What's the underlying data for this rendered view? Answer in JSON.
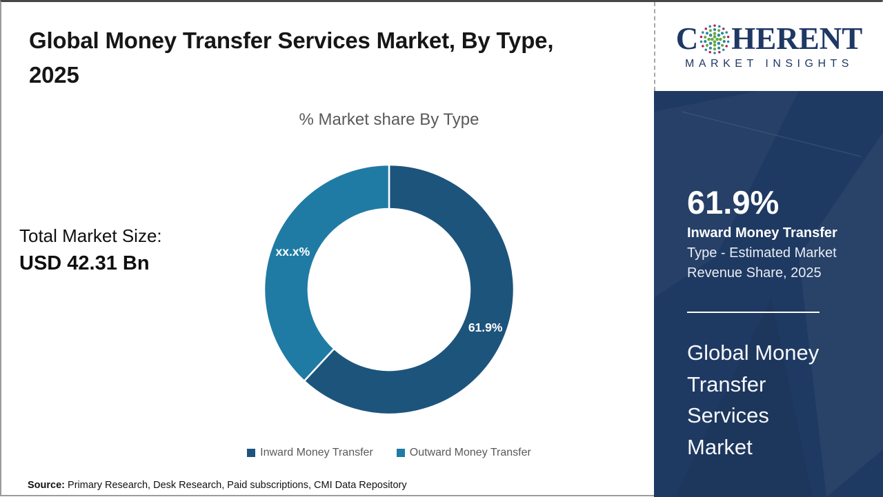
{
  "header": {
    "title_line1": "Global Money Transfer Services Market, By Type,",
    "title_line2": "2025"
  },
  "logo": {
    "brand_prefix": "C",
    "brand_suffix": "HERENT",
    "tagline": "MARKET INSIGHTS",
    "navy": "#1f3864",
    "globe_dot_colors": {
      "crimson": "#b02565",
      "teal": "#2a8a9d",
      "green": "#69a73e"
    }
  },
  "left_panel": {
    "label": "Total Market Size:",
    "value": "USD 42.31 Bn"
  },
  "chart_data": {
    "type": "pie",
    "variant": "donut",
    "title": "% Market share By Type",
    "start_angle_deg": 0,
    "direction": "clockwise",
    "inner_radius_ratio": 0.645,
    "legend_position": "bottom",
    "segments": [
      {
        "label": "Inward Money Transfer",
        "value": 61.9,
        "display_label": "61.9%",
        "color": "#1d547c"
      },
      {
        "label": "Outward Money Transfer",
        "value": 38.1,
        "display_label": "xx.x%",
        "color": "#1f7ba4"
      }
    ]
  },
  "sidebar": {
    "bg_color": "#1f3a62",
    "stat_value": "61.9%",
    "stat_caption_bold": "Inward Money Transfer",
    "stat_caption_line2": "Type - Estimated Market",
    "stat_caption_line3": "Revenue Share, 2025",
    "market_name_lines": [
      "Global Money",
      "Transfer",
      "Services",
      "Market"
    ]
  },
  "footer": {
    "source_label": "Source:",
    "source_text": "Primary Research, Desk Research, Paid subscriptions, CMI Data Repository"
  }
}
